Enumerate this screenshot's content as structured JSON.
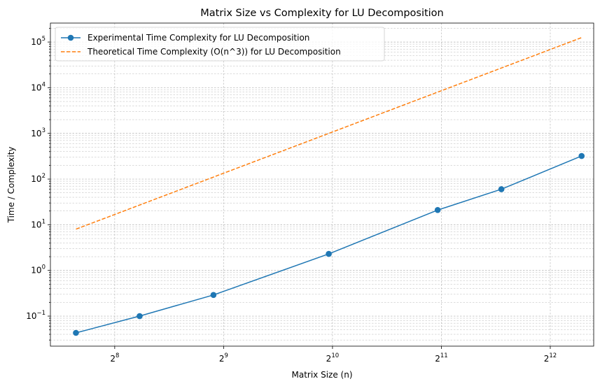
{
  "chart_data": {
    "type": "line",
    "title": "Matrix Size vs Complexity for LU Decomposition",
    "xlabel": "Matrix Size (n)",
    "ylabel": "Time / Complexity",
    "x_scale": "log2",
    "y_scale": "log10",
    "xlim": [
      170,
      5400
    ],
    "ylim": [
      0.022,
      260000
    ],
    "x_ticks": [
      {
        "value": 256,
        "base": "2",
        "exp": "8"
      },
      {
        "value": 512,
        "base": "2",
        "exp": "9"
      },
      {
        "value": 1024,
        "base": "2",
        "exp": "10"
      },
      {
        "value": 2048,
        "base": "2",
        "exp": "11"
      },
      {
        "value": 4096,
        "base": "2",
        "exp": "12"
      }
    ],
    "y_ticks": [
      {
        "value": 0.1,
        "base": "10",
        "exp": "−1"
      },
      {
        "value": 1,
        "base": "10",
        "exp": "0"
      },
      {
        "value": 10,
        "base": "10",
        "exp": "1"
      },
      {
        "value": 100,
        "base": "10",
        "exp": "2"
      },
      {
        "value": 1000,
        "base": "10",
        "exp": "3"
      },
      {
        "value": 10000,
        "base": "10",
        "exp": "4"
      },
      {
        "value": 100000,
        "base": "10",
        "exp": "5"
      }
    ],
    "grid": true,
    "legend_position": "top-left",
    "series": [
      {
        "name": "Experimental Time Complexity for LU Decomposition",
        "color": "#1f77b4",
        "style": "solid",
        "marker": "circle",
        "x": [
          200,
          300,
          480,
          1000,
          2000,
          3000,
          5000
        ],
        "y": [
          0.043,
          0.1,
          0.29,
          2.3,
          21,
          60,
          320
        ]
      },
      {
        "name": "Theoretical Time Complexity (O(n^3)) for LU Decomposition",
        "color": "#ff7f0e",
        "style": "dashed",
        "marker": "none",
        "x": [
          200,
          5000
        ],
        "y": [
          8,
          125000
        ]
      }
    ]
  }
}
